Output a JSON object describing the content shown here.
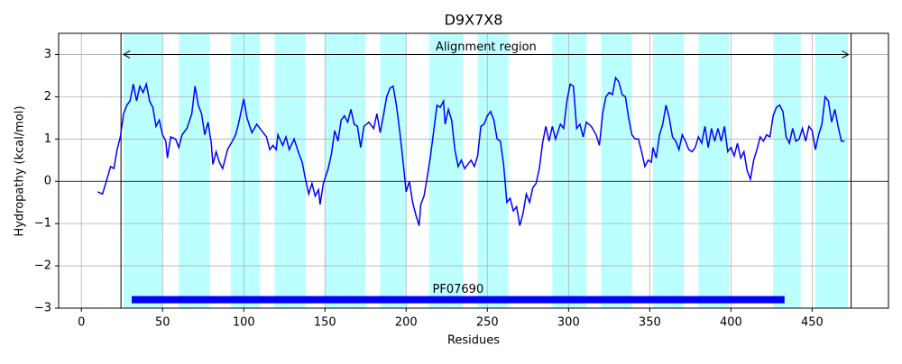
{
  "chart_data": {
    "type": "line",
    "title": "D9X7X8",
    "xlabel": "Residues",
    "ylabel": "Hydropathy (kcal/mol)",
    "x": [
      10,
      13,
      15,
      18,
      20,
      22,
      24,
      26,
      28,
      30,
      32,
      34,
      36,
      38,
      40,
      42,
      44,
      46,
      48,
      50,
      52,
      53,
      55,
      58,
      60,
      62,
      65,
      68,
      70,
      72,
      74,
      76,
      78,
      80,
      81,
      83,
      85,
      87,
      90,
      93,
      95,
      97,
      100,
      102,
      105,
      108,
      111,
      114,
      116,
      118,
      120,
      121,
      124,
      126,
      128,
      131,
      134,
      136,
      138,
      140,
      142,
      144,
      146,
      147,
      149,
      152,
      154,
      156,
      158,
      160,
      162,
      164,
      166,
      168,
      170,
      172,
      174,
      177,
      180,
      182,
      184,
      186,
      188,
      190,
      192,
      194,
      196,
      198,
      200,
      202,
      204,
      206,
      208,
      209,
      211,
      213,
      215,
      217,
      219,
      221,
      223,
      224,
      226,
      228,
      230,
      232,
      234,
      236,
      238,
      240,
      242,
      244,
      246,
      248,
      250,
      252,
      254,
      256,
      258,
      260,
      262,
      264,
      266,
      268,
      270,
      272,
      274,
      276,
      278,
      280,
      282,
      284,
      286,
      288,
      290,
      292,
      295,
      297,
      299,
      301,
      303,
      305,
      307,
      309,
      311,
      314,
      317,
      319,
      321,
      323,
      325,
      327,
      329,
      331,
      333,
      335,
      337,
      339,
      341,
      343,
      345,
      347,
      349,
      351,
      352,
      354,
      356,
      358,
      360,
      362,
      364,
      366,
      368,
      370,
      372,
      374,
      376,
      378,
      380,
      382,
      384,
      386,
      388,
      390,
      392,
      394,
      396,
      398,
      400,
      402,
      404,
      406,
      408,
      410,
      412,
      414,
      416,
      418,
      420,
      422,
      424,
      426,
      428,
      430,
      432,
      434,
      436,
      438,
      440,
      442,
      444,
      446,
      448,
      450,
      452,
      454,
      456,
      458,
      460,
      462,
      464,
      466,
      468,
      470
    ],
    "series": [
      {
        "color": "#0000ff",
        "values": [
          -0.25,
          -0.3,
          -0.05,
          0.35,
          0.3,
          0.75,
          1.05,
          1.6,
          1.8,
          1.9,
          2.3,
          1.9,
          2.25,
          2.1,
          2.3,
          1.9,
          1.75,
          1.3,
          1.45,
          1.1,
          0.95,
          0.55,
          1.05,
          1.0,
          0.8,
          1.1,
          1.25,
          1.6,
          2.25,
          1.8,
          1.6,
          1.1,
          1.4,
          0.9,
          0.4,
          0.7,
          0.45,
          0.3,
          0.75,
          0.95,
          1.1,
          1.4,
          1.95,
          1.5,
          1.15,
          1.35,
          1.2,
          1.05,
          0.75,
          0.85,
          0.75,
          1.1,
          0.85,
          1.05,
          0.75,
          1.0,
          0.65,
          0.45,
          0.05,
          -0.3,
          -0.05,
          -0.35,
          -0.2,
          -0.55,
          -0.05,
          0.3,
          0.65,
          1.2,
          0.95,
          1.45,
          1.55,
          1.4,
          1.7,
          1.35,
          1.3,
          0.8,
          1.3,
          1.4,
          1.25,
          1.6,
          1.15,
          1.55,
          2.0,
          2.2,
          2.25,
          1.8,
          1.2,
          0.5,
          -0.25,
          0.0,
          -0.5,
          -0.8,
          -1.05,
          -0.55,
          -0.35,
          0.1,
          0.6,
          1.2,
          1.8,
          1.75,
          1.9,
          1.35,
          1.7,
          1.45,
          0.75,
          0.35,
          0.5,
          0.3,
          0.4,
          0.5,
          0.35,
          0.6,
          1.3,
          1.35,
          1.55,
          1.65,
          1.45,
          1.0,
          0.95,
          0.4,
          -0.5,
          -0.4,
          -0.7,
          -0.6,
          -1.05,
          -0.75,
          -0.3,
          -0.5,
          -0.15,
          -0.05,
          0.3,
          0.9,
          1.3,
          0.95,
          1.3,
          1.0,
          1.35,
          1.25,
          1.9,
          2.3,
          2.25,
          1.25,
          1.35,
          1.05,
          1.4,
          1.3,
          1.1,
          0.85,
          1.6,
          2.0,
          2.1,
          2.05,
          2.45,
          2.35,
          2.05,
          2.0,
          1.5,
          1.1,
          1.0,
          1.0,
          0.7,
          0.35,
          0.5,
          0.45,
          0.8,
          0.55,
          1.1,
          1.35,
          1.8,
          1.5,
          1.05,
          0.95,
          0.75,
          1.1,
          0.95,
          0.75,
          0.7,
          0.8,
          1.05,
          0.9,
          1.3,
          0.8,
          1.25,
          0.95,
          1.25,
          0.95,
          1.3,
          0.7,
          0.8,
          0.6,
          0.9,
          0.55,
          0.7,
          0.25,
          0.05,
          0.5,
          0.75,
          1.05,
          0.95,
          1.1,
          1.05,
          1.55,
          1.75,
          1.8,
          1.65,
          1.05,
          0.9,
          1.25,
          0.95,
          1.0,
          1.25,
          0.95,
          1.3,
          1.2,
          0.75,
          1.1,
          1.35,
          2.0,
          1.9,
          1.4,
          1.7,
          1.3,
          0.95,
          0.95
        ]
      }
    ],
    "shaded_regions": [
      [
        26,
        50
      ],
      [
        60,
        79
      ],
      [
        92,
        110
      ],
      [
        119,
        138
      ],
      [
        150,
        175
      ],
      [
        184,
        200
      ],
      [
        214,
        235
      ],
      [
        244,
        263
      ],
      [
        290,
        311
      ],
      [
        320,
        339
      ],
      [
        352,
        371
      ],
      [
        380,
        399
      ],
      [
        426,
        443
      ],
      [
        452,
        472
      ]
    ],
    "shaded_color": "#bbffff",
    "hline": 0,
    "alignment_region": {
      "start": 24.4,
      "end": 474,
      "y": 3,
      "label": "Alignment region"
    },
    "domain": {
      "start": 31,
      "end": 433,
      "y": -2.8,
      "label": "PF07690",
      "color": "#0000ff"
    },
    "xlim": [
      -14,
      497
    ],
    "ylim": [
      -3,
      3.5
    ],
    "xticks": [
      0,
      50,
      100,
      150,
      200,
      250,
      300,
      350,
      400,
      450
    ],
    "yticks": [
      {
        "value": -3,
        "label": "−3"
      },
      {
        "value": -2,
        "label": "−2"
      },
      {
        "value": -1,
        "label": "−1"
      },
      0,
      1,
      2,
      3
    ],
    "grid": true
  }
}
